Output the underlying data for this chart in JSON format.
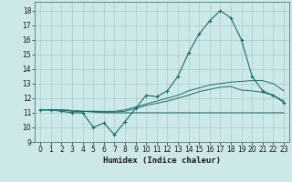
{
  "xlabel": "Humidex (Indice chaleur)",
  "bg_color": "#cce8e8",
  "grid_color": "#aacccc",
  "line_color": "#1a6b6b",
  "xlim": [
    -0.5,
    23.5
  ],
  "ylim": [
    9,
    18.6
  ],
  "yticks": [
    9,
    10,
    11,
    12,
    13,
    14,
    15,
    16,
    17,
    18
  ],
  "xticks": [
    0,
    1,
    2,
    3,
    4,
    5,
    6,
    7,
    8,
    9,
    10,
    11,
    12,
    13,
    14,
    15,
    16,
    17,
    18,
    19,
    20,
    21,
    22,
    23
  ],
  "main_line": [
    11.2,
    11.2,
    11.1,
    11.0,
    11.0,
    10.0,
    10.3,
    9.5,
    10.4,
    11.3,
    12.2,
    12.1,
    12.5,
    13.5,
    15.1,
    16.4,
    17.3,
    18.0,
    17.5,
    16.0,
    13.5,
    12.5,
    12.2,
    11.7
  ],
  "line2": [
    11.2,
    11.2,
    11.2,
    11.15,
    11.1,
    11.1,
    11.1,
    11.1,
    11.2,
    11.4,
    11.6,
    11.8,
    12.0,
    12.2,
    12.5,
    12.7,
    12.9,
    13.0,
    13.1,
    13.15,
    13.2,
    13.2,
    13.0,
    12.5
  ],
  "line3": [
    11.2,
    11.2,
    11.2,
    11.15,
    11.1,
    11.1,
    11.05,
    11.05,
    11.1,
    11.3,
    11.5,
    11.65,
    11.8,
    12.0,
    12.2,
    12.45,
    12.6,
    12.75,
    12.8,
    12.55,
    12.5,
    12.4,
    12.2,
    11.8
  ],
  "line4": [
    11.2,
    11.2,
    11.2,
    11.1,
    11.1,
    11.05,
    11.0,
    11.0,
    11.0,
    11.0,
    11.0,
    11.0,
    11.0,
    11.0,
    11.0,
    11.0,
    11.0,
    11.0,
    11.0,
    11.0,
    11.0,
    11.0,
    11.0,
    11.0
  ],
  "tick_fontsize": 5.5,
  "xlabel_fontsize": 6.5
}
